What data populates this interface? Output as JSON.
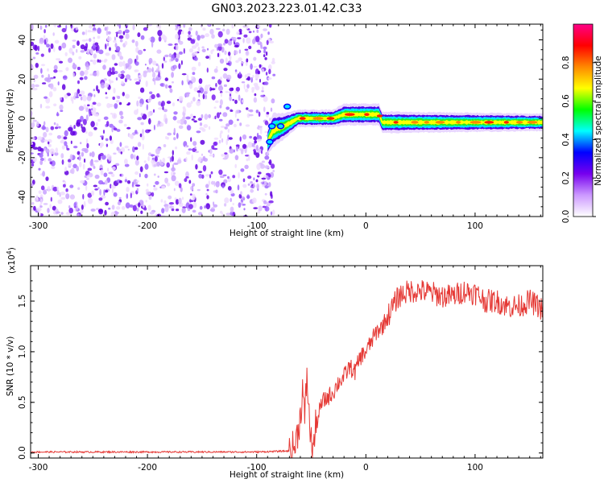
{
  "figure": {
    "title": "GN03.2023.223.01.42.C33"
  },
  "chart_data": [
    {
      "type": "heatmap",
      "xlabel": "Height of straight line (km)",
      "ylabel": "Frequency (Hz)",
      "xlim": [
        -307,
        162
      ],
      "ylim": [
        -50,
        48
      ],
      "x_ticks": [
        -300,
        -200,
        -100,
        0,
        100
      ],
      "y_ticks": [
        -40,
        -20,
        0,
        20,
        40
      ],
      "grid": false,
      "noise_region": {
        "x": [
          -307,
          -87
        ],
        "frequency": [
          -50,
          48
        ]
      },
      "signal_band": [
        {
          "x": -90,
          "frequency_center": -12,
          "frequency_halfwidth": 3
        },
        {
          "x": -85,
          "frequency_center": -6,
          "frequency_halfwidth": 4
        },
        {
          "x": -75,
          "frequency_center": -4,
          "frequency_halfwidth": 3
        },
        {
          "x": -62,
          "frequency_center": 0,
          "frequency_halfwidth": 2
        },
        {
          "x": -30,
          "frequency_center": 0,
          "frequency_halfwidth": 2
        },
        {
          "x": -20,
          "frequency_center": 2,
          "frequency_halfwidth": 2.5
        },
        {
          "x": 12,
          "frequency_center": 2,
          "frequency_halfwidth": 2.5
        },
        {
          "x": 15,
          "frequency_center": -2,
          "frequency_halfwidth": 2.5
        },
        {
          "x": 162,
          "frequency_center": -2,
          "frequency_halfwidth": 2
        }
      ],
      "colorbar": {
        "label": "Normalized spectral amplitude",
        "range": [
          0,
          1
        ],
        "ticks": [
          "0.0",
          "0.2",
          "0.4",
          "0.6",
          "0.8"
        ],
        "colors": [
          "#ffffff",
          "#cc99ff",
          "#7700ee",
          "#0000ff",
          "#00ffff",
          "#00ff00",
          "#ffff00",
          "#ff8800",
          "#ff0000",
          "#ff0088"
        ]
      }
    },
    {
      "type": "line",
      "xlabel": "Height of straight line (km)",
      "ylabel": "SNR (10 * v/v)",
      "y_multiplier": "(x10",
      "y_multiplier_exp": "4",
      "y_multiplier_close": ")",
      "xlim": [
        -307,
        162
      ],
      "ylim": [
        -0.05,
        1.85
      ],
      "x_ticks": [
        -300,
        -200,
        -100,
        0,
        100
      ],
      "y_ticks": [
        "0.0",
        "0.5",
        "1.0",
        "1.5"
      ],
      "grid": false,
      "color": "#e53935",
      "series": [
        {
          "points": [
            [
              -307,
              0.01
            ],
            [
              -250,
              0.01
            ],
            [
              -200,
              0.01
            ],
            [
              -150,
              0.01
            ],
            [
              -100,
              0.01
            ],
            [
              -70,
              0.02
            ],
            [
              -66,
              0.05
            ],
            [
              -64,
              0.1
            ],
            [
              -62,
              0.25
            ],
            [
              -60,
              0.35
            ],
            [
              -58,
              0.65
            ],
            [
              -56,
              0.3
            ],
            [
              -54,
              0.8
            ],
            [
              -52,
              0.35
            ],
            [
              -50,
              0.1
            ],
            [
              -48,
              0.05
            ],
            [
              -46,
              0.25
            ],
            [
              -44,
              0.35
            ],
            [
              -40,
              0.5
            ],
            [
              -35,
              0.55
            ],
            [
              -30,
              0.6
            ],
            [
              -25,
              0.7
            ],
            [
              -20,
              0.75
            ],
            [
              -15,
              0.85
            ],
            [
              -10,
              0.8
            ],
            [
              -5,
              0.95
            ],
            [
              0,
              1.0
            ],
            [
              5,
              1.1
            ],
            [
              10,
              1.2
            ],
            [
              15,
              1.25
            ],
            [
              20,
              1.35
            ],
            [
              25,
              1.45
            ],
            [
              30,
              1.55
            ],
            [
              40,
              1.6
            ],
            [
              50,
              1.6
            ],
            [
              60,
              1.58
            ],
            [
              70,
              1.55
            ],
            [
              80,
              1.55
            ],
            [
              90,
              1.6
            ],
            [
              100,
              1.58
            ],
            [
              110,
              1.5
            ],
            [
              120,
              1.5
            ],
            [
              130,
              1.45
            ],
            [
              140,
              1.45
            ],
            [
              150,
              1.5
            ],
            [
              162,
              1.42
            ]
          ]
        }
      ]
    }
  ]
}
